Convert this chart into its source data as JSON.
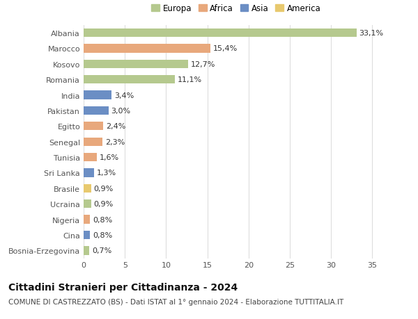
{
  "countries": [
    "Bosnia-Erzegovina",
    "Cina",
    "Nigeria",
    "Ucraina",
    "Brasile",
    "Sri Lanka",
    "Tunisia",
    "Senegal",
    "Egitto",
    "Pakistan",
    "India",
    "Romania",
    "Kosovo",
    "Marocco",
    "Albania"
  ],
  "values": [
    0.7,
    0.8,
    0.8,
    0.9,
    0.9,
    1.3,
    1.6,
    2.3,
    2.4,
    3.0,
    3.4,
    11.1,
    12.7,
    15.4,
    33.1
  ],
  "labels": [
    "0,7%",
    "0,8%",
    "0,8%",
    "0,9%",
    "0,9%",
    "1,3%",
    "1,6%",
    "2,3%",
    "2,4%",
    "3,0%",
    "3,4%",
    "11,1%",
    "12,7%",
    "15,4%",
    "33,1%"
  ],
  "colors": [
    "#b5c98e",
    "#6b8ec4",
    "#e8a87c",
    "#b5c98e",
    "#e8c96e",
    "#6b8ec4",
    "#e8a87c",
    "#e8a87c",
    "#e8a87c",
    "#6b8ec4",
    "#6b8ec4",
    "#b5c98e",
    "#b5c98e",
    "#e8a87c",
    "#b5c98e"
  ],
  "legend_labels": [
    "Europa",
    "Africa",
    "Asia",
    "America"
  ],
  "legend_colors": [
    "#b5c98e",
    "#e8a87c",
    "#6b8ec4",
    "#e8c96e"
  ],
  "title": "Cittadini Stranieri per Cittadinanza - 2024",
  "subtitle": "COMUNE DI CASTREZZATO (BS) - Dati ISTAT al 1° gennaio 2024 - Elaborazione TUTTITALIA.IT",
  "xlim": [
    0,
    37
  ],
  "xticks": [
    0,
    5,
    10,
    15,
    20,
    25,
    30,
    35
  ],
  "background_color": "#ffffff",
  "grid_color": "#dddddd",
  "bar_height": 0.55,
  "title_fontsize": 10,
  "subtitle_fontsize": 7.5,
  "tick_fontsize": 8,
  "label_fontsize": 8,
  "legend_fontsize": 8.5
}
